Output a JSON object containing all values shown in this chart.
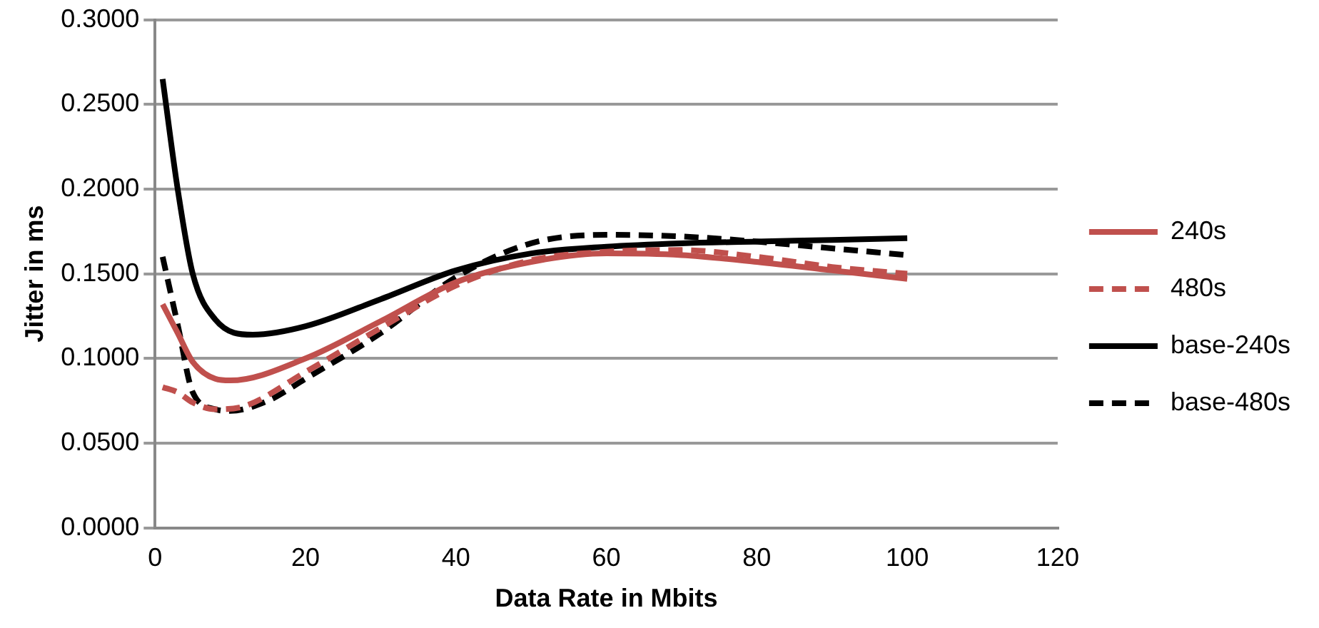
{
  "chart_data": {
    "type": "line",
    "xlabel": "Data Rate in Mbits",
    "ylabel": "Jitter in ms",
    "xlim": [
      0,
      120
    ],
    "xticks": [
      0,
      20,
      40,
      60,
      80,
      100,
      120
    ],
    "ylim": [
      0,
      0.3
    ],
    "yticks": [
      {
        "value": 0,
        "label": "0.0000"
      },
      {
        "value": 0.05,
        "label": "0.0500"
      },
      {
        "value": 0.1,
        "label": "0.1000"
      },
      {
        "value": 0.15,
        "label": "0.1500"
      },
      {
        "value": 0.2,
        "label": "0.2000"
      },
      {
        "value": 0.25,
        "label": "0.2500"
      },
      {
        "value": 0.3,
        "label": "0.3000"
      }
    ],
    "grid": "y",
    "legend": "right",
    "marker": "none",
    "series": [
      {
        "name": "240s",
        "color": "#c0504d",
        "line_style": "solid",
        "x": [
          1,
          3,
          5,
          8,
          10,
          20,
          30,
          40,
          50,
          60,
          70,
          80,
          90,
          100
        ],
        "values": [
          0.132,
          0.115,
          0.098,
          0.088,
          0.087,
          0.1,
          0.122,
          0.145,
          0.157,
          0.162,
          0.161,
          0.157,
          0.152,
          0.147
        ]
      },
      {
        "name": "480s",
        "color": "#c0504d",
        "line_style": "dashed",
        "x": [
          1,
          3,
          5,
          8,
          12,
          20,
          30,
          40,
          50,
          60,
          70,
          80,
          90,
          100
        ],
        "values": [
          0.083,
          0.08,
          0.074,
          0.07,
          0.072,
          0.092,
          0.118,
          0.143,
          0.158,
          0.163,
          0.164,
          0.16,
          0.154,
          0.15
        ]
      },
      {
        "name": "base-240s",
        "color": "#000000",
        "line_style": "solid",
        "x": [
          1,
          3,
          5,
          8,
          13,
          20,
          30,
          40,
          50,
          60,
          70,
          80,
          90,
          100
        ],
        "values": [
          0.265,
          0.2,
          0.15,
          0.123,
          0.114,
          0.119,
          0.135,
          0.152,
          0.162,
          0.166,
          0.168,
          0.169,
          0.17,
          0.171
        ]
      },
      {
        "name": "base-480s",
        "color": "#000000",
        "line_style": "dashed",
        "x": [
          1,
          3,
          5,
          8,
          10,
          15,
          20,
          30,
          40,
          50,
          60,
          70,
          80,
          90,
          100
        ],
        "values": [
          0.16,
          0.12,
          0.08,
          0.07,
          0.069,
          0.075,
          0.088,
          0.115,
          0.148,
          0.168,
          0.173,
          0.172,
          0.169,
          0.165,
          0.161
        ]
      }
    ]
  }
}
